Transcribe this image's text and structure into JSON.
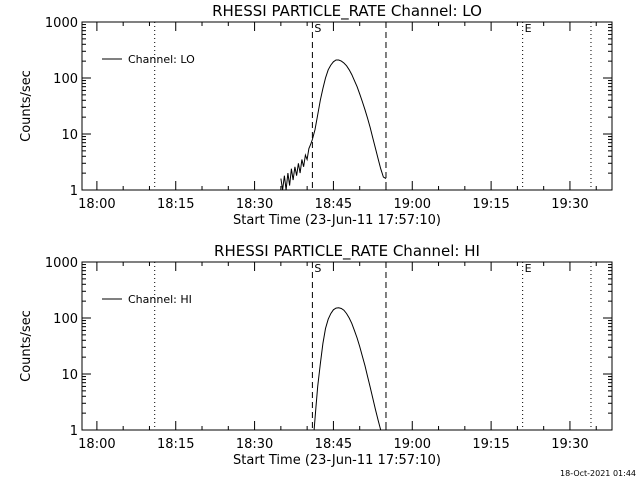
{
  "footer_timestamp": "18-Oct-2021 01:44",
  "chart_data": [
    {
      "type": "line",
      "title": "RHESSI PARTICLE_RATE Channel: LO",
      "xlabel": "Start Time (23-Jun-11 17:57:10)",
      "ylabel": "Counts/sec",
      "y_scale": "log",
      "ylim": [
        1,
        1000
      ],
      "y_ticks": [
        1,
        10,
        100,
        1000
      ],
      "y_tick_labels": [
        "1",
        "10",
        "100",
        "1000"
      ],
      "x_ticks": [
        "18:00",
        "18:15",
        "18:30",
        "18:45",
        "19:00",
        "19:15",
        "19:30"
      ],
      "legend": {
        "label": "Channel: LO",
        "placement": "top-left"
      },
      "markers": [
        {
          "label": "S",
          "time": "18:41",
          "style": "dashed"
        },
        {
          "label": "",
          "time": "18:55",
          "style": "dashed"
        },
        {
          "label": "",
          "time": "18:11",
          "style": "dotted"
        },
        {
          "label": "E",
          "time": "19:21",
          "style": "dotted"
        },
        {
          "label": "",
          "time": "19:34",
          "style": "dotted"
        }
      ],
      "series": [
        {
          "x": [
            "18:35:00",
            "18:35:20",
            "18:35:40",
            "18:36:00",
            "18:36:20",
            "18:36:40",
            "18:37:00",
            "18:37:20",
            "18:37:40",
            "18:38:00",
            "18:38:20",
            "18:38:40",
            "18:39:00",
            "18:39:20",
            "18:39:40",
            "18:40:00",
            "18:40:20",
            "18:40:40",
            "18:41:00",
            "18:41:30",
            "18:42:00",
            "18:42:30",
            "18:43:00",
            "18:43:30",
            "18:44:00",
            "18:44:30",
            "18:45:00",
            "18:45:30",
            "18:46:00",
            "18:46:30",
            "18:47:00",
            "18:47:30",
            "18:48:00",
            "18:48:30",
            "18:49:00",
            "18:49:30",
            "18:50:00",
            "18:50:30",
            "18:51:00",
            "18:51:30",
            "18:52:00",
            "18:52:30",
            "18:53:00",
            "18:53:30",
            "18:54:00",
            "18:54:30",
            "18:55:00"
          ],
          "values": [
            1.6,
            1.0,
            1.8,
            1.0,
            2.0,
            1.2,
            2.4,
            1.5,
            2.6,
            1.8,
            3.0,
            2.0,
            3.5,
            2.6,
            4.2,
            3.5,
            5.5,
            6.5,
            8.0,
            12,
            22,
            40,
            65,
            100,
            140,
            170,
            195,
            210,
            210,
            200,
            185,
            165,
            140,
            115,
            90,
            70,
            52,
            38,
            27,
            19,
            13,
            8.5,
            5.5,
            3.6,
            2.4,
            1.7,
            1.6
          ]
        }
      ]
    },
    {
      "type": "line",
      "title": "RHESSI PARTICLE_RATE Channel: HI",
      "xlabel": "Start Time (23-Jun-11 17:57:10)",
      "ylabel": "Counts/sec",
      "y_scale": "log",
      "ylim": [
        1,
        1000
      ],
      "y_ticks": [
        1,
        10,
        100,
        1000
      ],
      "y_tick_labels": [
        "1",
        "10",
        "100",
        "1000"
      ],
      "x_ticks": [
        "18:00",
        "18:15",
        "18:30",
        "18:45",
        "19:00",
        "19:15",
        "19:30"
      ],
      "legend": {
        "label": "Channel: HI",
        "placement": "top-left"
      },
      "markers": [
        {
          "label": "S",
          "time": "18:41",
          "style": "dashed"
        },
        {
          "label": "",
          "time": "18:55",
          "style": "dashed"
        },
        {
          "label": "",
          "time": "18:11",
          "style": "dotted"
        },
        {
          "label": "E",
          "time": "19:21",
          "style": "dotted"
        },
        {
          "label": "",
          "time": "19:34",
          "style": "dotted"
        }
      ],
      "series": [
        {
          "x": [
            "18:41:20",
            "18:41:40",
            "18:42:00",
            "18:42:30",
            "18:43:00",
            "18:43:30",
            "18:44:00",
            "18:44:30",
            "18:45:00",
            "18:45:30",
            "18:46:00",
            "18:46:30",
            "18:47:00",
            "18:47:30",
            "18:48:00",
            "18:48:30",
            "18:49:00",
            "18:49:30",
            "18:50:00",
            "18:50:30",
            "18:51:00",
            "18:51:30",
            "18:52:00",
            "18:52:30",
            "18:53:00",
            "18:53:30",
            "18:54:00"
          ],
          "values": [
            1.0,
            2.5,
            6,
            15,
            35,
            65,
            95,
            120,
            140,
            150,
            152,
            148,
            138,
            120,
            100,
            80,
            60,
            44,
            31,
            21,
            14,
            9,
            5.8,
            3.7,
            2.3,
            1.5,
            1.0
          ]
        }
      ]
    }
  ]
}
